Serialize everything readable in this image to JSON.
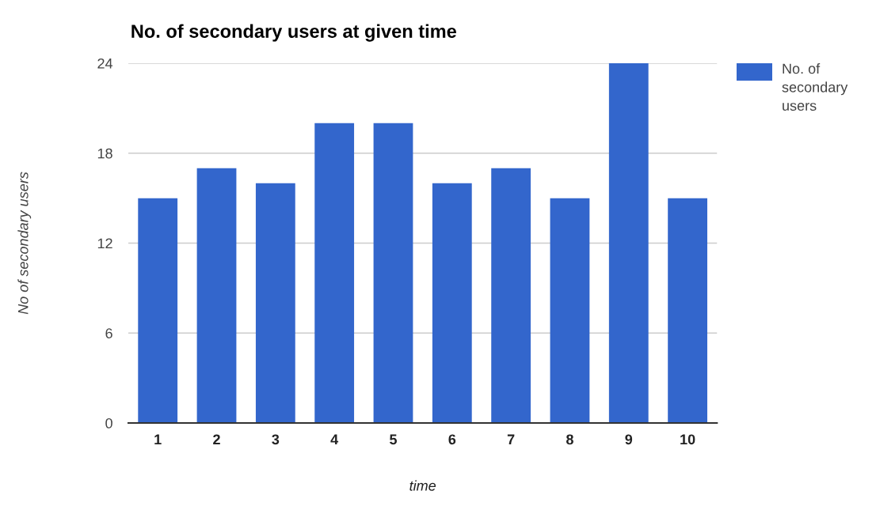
{
  "chart_data": {
    "type": "bar",
    "title": "No. of secondary users at given time",
    "xlabel": "time",
    "ylabel": "No of secondary users",
    "categories": [
      "1",
      "2",
      "3",
      "4",
      "5",
      "6",
      "7",
      "8",
      "9",
      "10"
    ],
    "series": [
      {
        "name": "No. of secondary users",
        "color": "#3366cc",
        "values": [
          15,
          17,
          16,
          20,
          20,
          16,
          17,
          15,
          24,
          15
        ]
      }
    ],
    "ylim": [
      0,
      24
    ],
    "yticks": [
      0,
      6,
      12,
      18,
      24
    ],
    "grid": "y",
    "legend": "top right"
  }
}
